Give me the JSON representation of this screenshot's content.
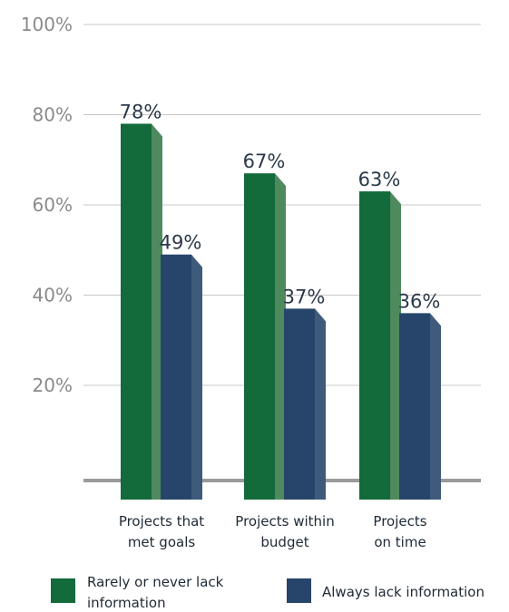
{
  "chart_data": {
    "type": "bar",
    "title": "",
    "xlabel": "",
    "ylabel": "",
    "ylim": [
      0,
      100
    ],
    "y_ticks": [
      20,
      40,
      60,
      80,
      100
    ],
    "y_tick_labels": [
      "20%",
      "40%",
      "60%",
      "80%",
      "100%"
    ],
    "categories": [
      [
        "Projects that",
        "met goals"
      ],
      [
        "Projects within",
        "budget"
      ],
      [
        "Projects",
        "on time"
      ]
    ],
    "series": [
      {
        "name": [
          "Rarely or never lack",
          "information"
        ],
        "values": [
          78,
          67,
          63
        ],
        "labels": [
          "78%",
          "67%",
          "63%"
        ],
        "color": "#136a3a",
        "side_color": "#4e8a5e"
      },
      {
        "name": [
          "Always lack information"
        ],
        "values": [
          49,
          37,
          36
        ],
        "labels": [
          "49%",
          "37%",
          "36%"
        ],
        "color": "#27456a",
        "side_color": "#3e5b7c"
      }
    ],
    "grid": true,
    "legend_position": "bottom",
    "style": "3d-bar"
  }
}
